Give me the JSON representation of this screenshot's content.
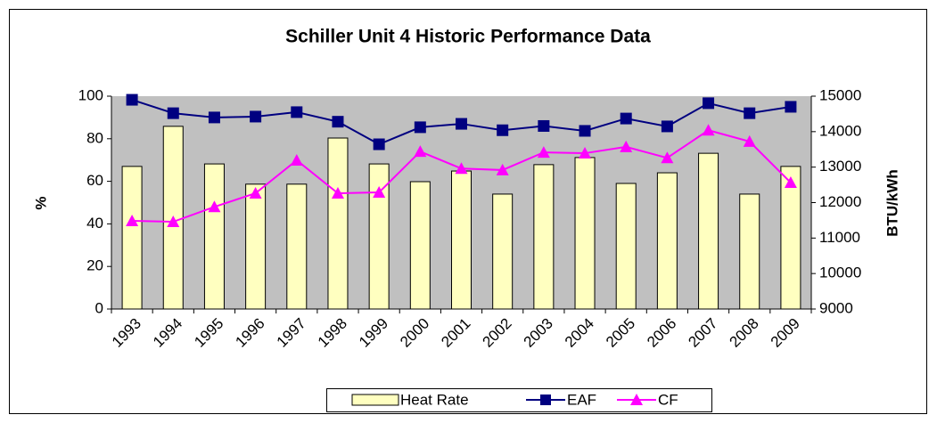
{
  "chart_data": {
    "type": "bar_line",
    "title": "Schiller Unit 4 Historic Performance Data",
    "y_label": "%",
    "y2_label": "BTU/kWh",
    "categories": [
      "1993",
      "1994",
      "1995",
      "1996",
      "1997",
      "1998",
      "1999",
      "2000",
      "2001",
      "2002",
      "2003",
      "2004",
      "2005",
      "2006",
      "2007",
      "2008",
      "2009"
    ],
    "series": [
      {
        "name": "Heat Rate",
        "type": "bar",
        "axis": "y2",
        "color": "#ffffc0",
        "values": [
          13020,
          14150,
          13090,
          12520,
          12520,
          13820,
          13090,
          12590,
          12890,
          12240,
          13070,
          13270,
          12540,
          12840,
          13390,
          12240,
          13020
        ]
      },
      {
        "name": "EAF",
        "type": "line",
        "axis": "y",
        "color": "#000080",
        "marker": "square",
        "values": [
          98.3,
          92,
          90,
          90.4,
          92.5,
          88,
          77.4,
          85.4,
          87,
          84,
          86,
          83.7,
          89.5,
          85.8,
          96.7,
          92,
          95
        ]
      },
      {
        "name": "CF",
        "type": "line",
        "axis": "y",
        "color": "#ff00ff",
        "marker": "triangle",
        "values": [
          41.4,
          41,
          48,
          54.4,
          69.9,
          54.4,
          54.8,
          74,
          66,
          65.3,
          73.6,
          73.2,
          76.2,
          71,
          84,
          78.7,
          59.4
        ]
      }
    ],
    "ylim": [
      0,
      100
    ],
    "yticks": [
      0,
      20,
      40,
      60,
      80,
      100
    ],
    "y2lim": [
      9000,
      15000
    ],
    "y2ticks": [
      9000,
      10000,
      11000,
      12000,
      13000,
      14000,
      15000
    ],
    "plot_background": "#c0c0c0"
  }
}
